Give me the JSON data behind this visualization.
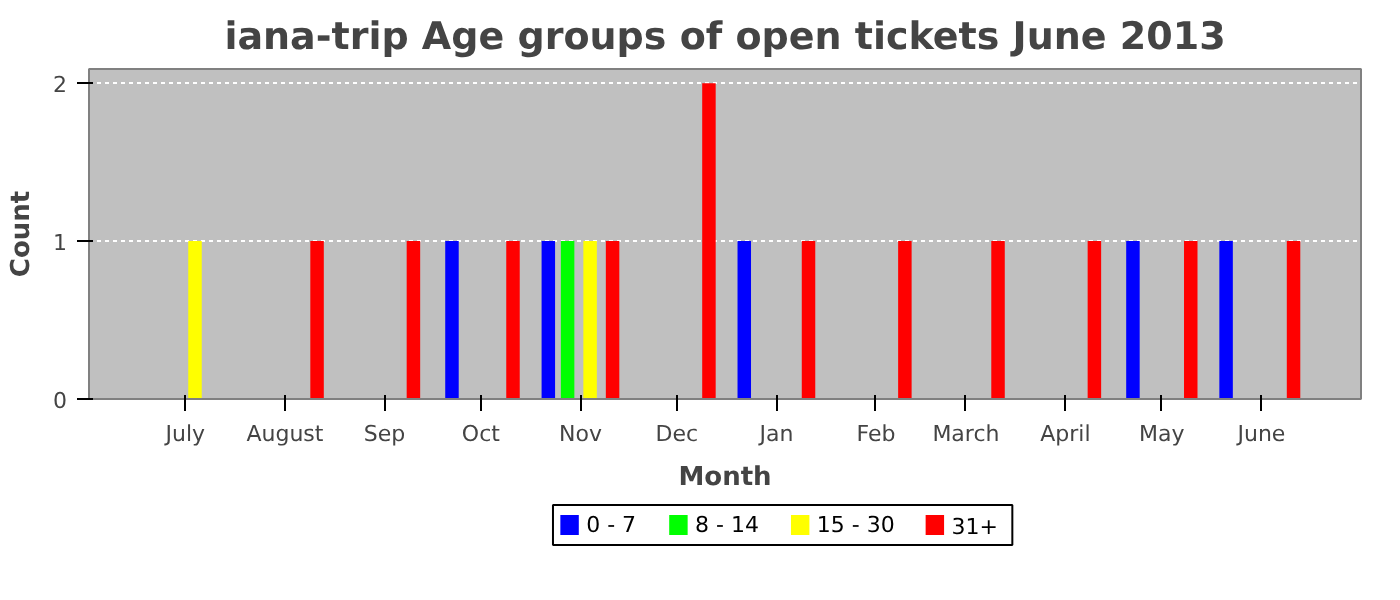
{
  "chart_data": {
    "type": "bar",
    "title": "iana-trip Age groups of open tickets June 2013",
    "xlabel": "Month",
    "ylabel": "Count",
    "xlim": [
      "2012-06-01",
      "2013-07-02"
    ],
    "xticks": [
      {
        "value": "2012-07-01",
        "label": "July"
      },
      {
        "value": "2012-08-01",
        "label": "August"
      },
      {
        "value": "2012-09-01",
        "label": "Sep"
      },
      {
        "value": "2012-10-01",
        "label": "Oct"
      },
      {
        "value": "2012-11-01",
        "label": "Nov"
      },
      {
        "value": "2012-12-01",
        "label": "Dec"
      },
      {
        "value": "2013-01-01",
        "label": "Jan"
      },
      {
        "value": "2013-02-01",
        "label": "Feb"
      },
      {
        "value": "2013-03-01",
        "label": "March"
      },
      {
        "value": "2013-04-01",
        "label": "April"
      },
      {
        "value": "2013-05-01",
        "label": "May"
      },
      {
        "value": "2013-06-01",
        "label": "June"
      }
    ],
    "ylim": [
      0,
      2.09
    ],
    "yticks": [
      0,
      1,
      2
    ],
    "grid": "y",
    "legend": "bottom",
    "series": [
      {
        "name": "0 - 7",
        "color": "#0000ff",
        "x": [
          "2012-09-22",
          "2012-10-22",
          "2012-12-22",
          "2013-04-22",
          "2013-05-21"
        ],
        "values": [
          1,
          1,
          1,
          1,
          1
        ]
      },
      {
        "name": "8 - 14",
        "color": "#00ff00",
        "x": [
          "2012-10-28"
        ],
        "values": [
          1
        ]
      },
      {
        "name": "15 - 30",
        "color": "#ffff00",
        "x": [
          "2012-07-04",
          "2012-11-04"
        ],
        "values": [
          1,
          1
        ]
      },
      {
        "name": "31+",
        "color": "#ff0000",
        "x": [
          "2012-08-11",
          "2012-09-10",
          "2012-10-11",
          "2012-11-11",
          "2012-12-11",
          "2013-01-11",
          "2013-02-10",
          "2013-03-11",
          "2013-04-10",
          "2013-05-10",
          "2013-06-11"
        ],
        "values": [
          1,
          1,
          1,
          1,
          2,
          1,
          1,
          1,
          1,
          1,
          1
        ]
      }
    ]
  }
}
